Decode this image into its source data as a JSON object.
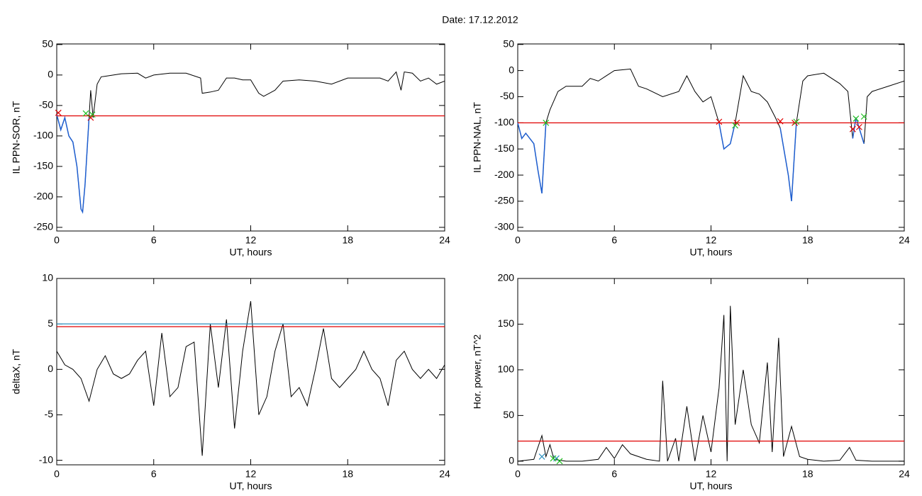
{
  "title": "Date:  17.12.2012",
  "chart_data": [
    {
      "type": "line",
      "ylabel": "IL PPN-SOR, nT",
      "xlabel": "UT, hours",
      "xlim": [
        0,
        24
      ],
      "xticks": [
        0,
        6,
        12,
        18,
        24
      ],
      "ylim": [
        -256,
        51
      ],
      "yticks": [
        -250,
        -200,
        -150,
        -100,
        -50,
        0,
        50
      ],
      "x": [
        0,
        0.25,
        0.5,
        0.75,
        1,
        1.25,
        1.5,
        1.6,
        1.75,
        2,
        2.1,
        2.25,
        2.5,
        2.75,
        3,
        4,
        5,
        5.5,
        6,
        7,
        8,
        8.9,
        9,
        9.5,
        10,
        10.5,
        11,
        11.5,
        12,
        12.5,
        12.8,
        13.5,
        14,
        15,
        16,
        17,
        18,
        19,
        20,
        20.5,
        21,
        21.3,
        21.5,
        22,
        22.5,
        23,
        23.5,
        24
      ],
      "series": [
        {
          "color": "#000000",
          "values": [
            -65,
            -90,
            -70,
            -100,
            -110,
            -150,
            -220,
            -225,
            -180,
            -70,
            -25,
            -70,
            -15,
            -3,
            -2,
            2,
            3,
            -5,
            0,
            3,
            3,
            -5,
            -30,
            -28,
            -25,
            -5,
            -5,
            -8,
            -8,
            -30,
            -35,
            -25,
            -10,
            -8,
            -10,
            -15,
            -5,
            -5,
            -5,
            -10,
            5,
            -25,
            5,
            3,
            -10,
            -5,
            -15,
            -10
          ]
        },
        {
          "color": "#1f5fd0",
          "values": [
            -65,
            -90,
            -70,
            -100,
            -110,
            -150,
            -220,
            -225,
            -180,
            -70,
            null,
            null,
            null,
            null,
            null,
            null,
            null,
            null,
            null,
            null,
            null,
            null,
            null,
            null,
            null,
            null,
            null,
            null,
            null,
            null,
            null,
            null,
            null,
            null,
            null,
            null,
            null,
            null,
            null,
            null,
            null,
            null,
            null,
            null,
            null,
            null,
            null,
            null
          ]
        }
      ],
      "thresholds": [
        {
          "value": -67,
          "color": "#e00000"
        }
      ],
      "markers": [
        {
          "color": "#e00000",
          "x": [
            0.1,
            2.1
          ],
          "values": [
            -62,
            -70
          ]
        },
        {
          "color": "#22c022",
          "x": [
            1.8,
            2.2
          ],
          "values": [
            -63,
            -65
          ]
        }
      ]
    },
    {
      "type": "line",
      "ylabel": "IL PPN-NAL, nT",
      "xlabel": "UT, hours",
      "xlim": [
        0,
        24
      ],
      "xticks": [
        0,
        6,
        12,
        18,
        24
      ],
      "ylim": [
        -307,
        51
      ],
      "yticks": [
        -300,
        -250,
        -200,
        -150,
        -100,
        -50,
        0,
        50
      ],
      "x": [
        0,
        0.25,
        0.5,
        0.75,
        1,
        1.25,
        1.5,
        1.75,
        2,
        2.5,
        3,
        4,
        4.5,
        5,
        5.5,
        6,
        7,
        7.5,
        8,
        9,
        10,
        10.5,
        11,
        11.5,
        12,
        12.5,
        12.8,
        13.2,
        13.5,
        14,
        14.5,
        15,
        15.5,
        16,
        16.3,
        16.8,
        17,
        17.3,
        17.7,
        18,
        19,
        20,
        20.5,
        20.8,
        21,
        21.3,
        21.5,
        21.7,
        22,
        23,
        24
      ],
      "series": [
        {
          "color": "#000000",
          "values": [
            -100,
            -130,
            -120,
            -130,
            -140,
            -190,
            -235,
            -100,
            -75,
            -40,
            -30,
            -30,
            -15,
            -20,
            -10,
            0,
            3,
            -30,
            -35,
            -50,
            -40,
            -10,
            -40,
            -60,
            -50,
            -100,
            -150,
            -140,
            -100,
            -10,
            -40,
            -45,
            -60,
            -90,
            -110,
            -200,
            -250,
            -100,
            -20,
            -10,
            -5,
            -25,
            -40,
            -130,
            -90,
            -120,
            -140,
            -50,
            -40,
            -30,
            -20
          ]
        },
        {
          "color": "#1f5fd0",
          "values": [
            -100,
            -130,
            -120,
            -130,
            -140,
            -190,
            -235,
            -100,
            null,
            null,
            null,
            null,
            null,
            null,
            null,
            null,
            null,
            null,
            null,
            null,
            null,
            null,
            null,
            null,
            null,
            -100,
            -150,
            -140,
            -100,
            null,
            null,
            null,
            null,
            null,
            -110,
            -200,
            -250,
            -100,
            null,
            null,
            null,
            null,
            null,
            -130,
            -90,
            -120,
            -140,
            null,
            null,
            null,
            null
          ]
        }
      ],
      "thresholds": [
        {
          "value": -100,
          "color": "#e00000"
        }
      ],
      "markers": [
        {
          "color": "#e00000",
          "x": [
            12.5,
            13.6,
            16.3,
            17.2,
            20.8,
            21.2
          ],
          "values": [
            -98,
            -100,
            -97,
            -100,
            -112,
            -108
          ]
        },
        {
          "color": "#22c022",
          "x": [
            1.75,
            13.5,
            17.3,
            21.0,
            21.5
          ],
          "values": [
            -100,
            -105,
            -98,
            -92,
            -88
          ]
        }
      ]
    },
    {
      "type": "line",
      "ylabel": "deltaX, nT",
      "xlabel": "UT, hours",
      "xlim": [
        0,
        24
      ],
      "xticks": [
        0,
        6,
        12,
        18,
        24
      ],
      "ylim": [
        -10.5,
        10
      ],
      "yticks": [
        -10,
        -5,
        0,
        5,
        10
      ],
      "x": [
        0,
        0.5,
        1,
        1.5,
        2,
        2.5,
        3,
        3.5,
        4,
        4.5,
        5,
        5.5,
        6,
        6.5,
        7,
        7.5,
        8,
        8.5,
        9,
        9.5,
        10,
        10.5,
        11,
        11.5,
        12,
        12.5,
        13,
        13.5,
        14,
        14.5,
        15,
        15.5,
        16,
        16.5,
        17,
        17.5,
        18,
        18.5,
        19,
        19.5,
        20,
        20.5,
        21,
        21.5,
        22,
        22.5,
        23,
        23.5,
        24
      ],
      "series": [
        {
          "color": "#000000",
          "values": [
            2,
            0.5,
            0,
            -1,
            -3.5,
            0,
            1.5,
            -0.5,
            -1,
            -0.5,
            1,
            2,
            -4,
            4,
            -3,
            -2,
            2.5,
            3,
            -9.5,
            5,
            -2,
            5.5,
            -6.5,
            2,
            7.5,
            -5,
            -3,
            2,
            5,
            -3,
            -2,
            -4,
            0,
            4.5,
            -1,
            -2,
            -1,
            0,
            2,
            0,
            -1,
            -4,
            1,
            2,
            0,
            -1,
            0,
            -1,
            0.5
          ]
        }
      ],
      "thresholds": [
        {
          "value": 5,
          "color": "#2a8fbf"
        },
        {
          "value": 4.7,
          "color": "#e00000"
        }
      ],
      "markers": []
    },
    {
      "type": "line",
      "ylabel": "Hor. power, nT^2",
      "xlabel": "UT, hours",
      "xlim": [
        0,
        24
      ],
      "xticks": [
        0,
        6,
        12,
        18,
        24
      ],
      "ylim": [
        -4,
        200
      ],
      "yticks": [
        0,
        50,
        100,
        150,
        200
      ],
      "x": [
        0,
        1,
        1.5,
        1.75,
        2,
        2.25,
        3,
        4,
        5,
        5.5,
        6,
        6.5,
        7,
        8,
        8.8,
        9,
        9.3,
        9.8,
        10,
        10.5,
        11,
        11.5,
        12,
        12.5,
        12.8,
        13,
        13.2,
        13.5,
        14,
        14.5,
        15,
        15.5,
        15.8,
        16.2,
        16.5,
        17,
        17.5,
        18,
        19,
        20,
        20.6,
        21,
        22,
        23,
        24
      ],
      "series": [
        {
          "color": "#000000",
          "values": [
            0,
            2,
            28,
            5,
            18,
            2,
            0,
            0,
            2,
            15,
            3,
            18,
            8,
            2,
            0,
            88,
            0,
            25,
            0,
            60,
            0,
            50,
            10,
            80,
            160,
            0,
            170,
            40,
            100,
            40,
            20,
            108,
            10,
            135,
            5,
            38,
            5,
            2,
            0,
            1,
            15,
            1,
            0,
            0,
            0
          ]
        }
      ],
      "thresholds": [
        {
          "value": 22,
          "color": "#e00000"
        }
      ],
      "markers": [
        {
          "color": "#2a8fbf",
          "x": [
            1.5,
            2.4
          ],
          "values": [
            5,
            3
          ]
        },
        {
          "color": "#22c022",
          "x": [
            2.2,
            2.6
          ],
          "values": [
            3,
            0
          ]
        }
      ]
    }
  ]
}
